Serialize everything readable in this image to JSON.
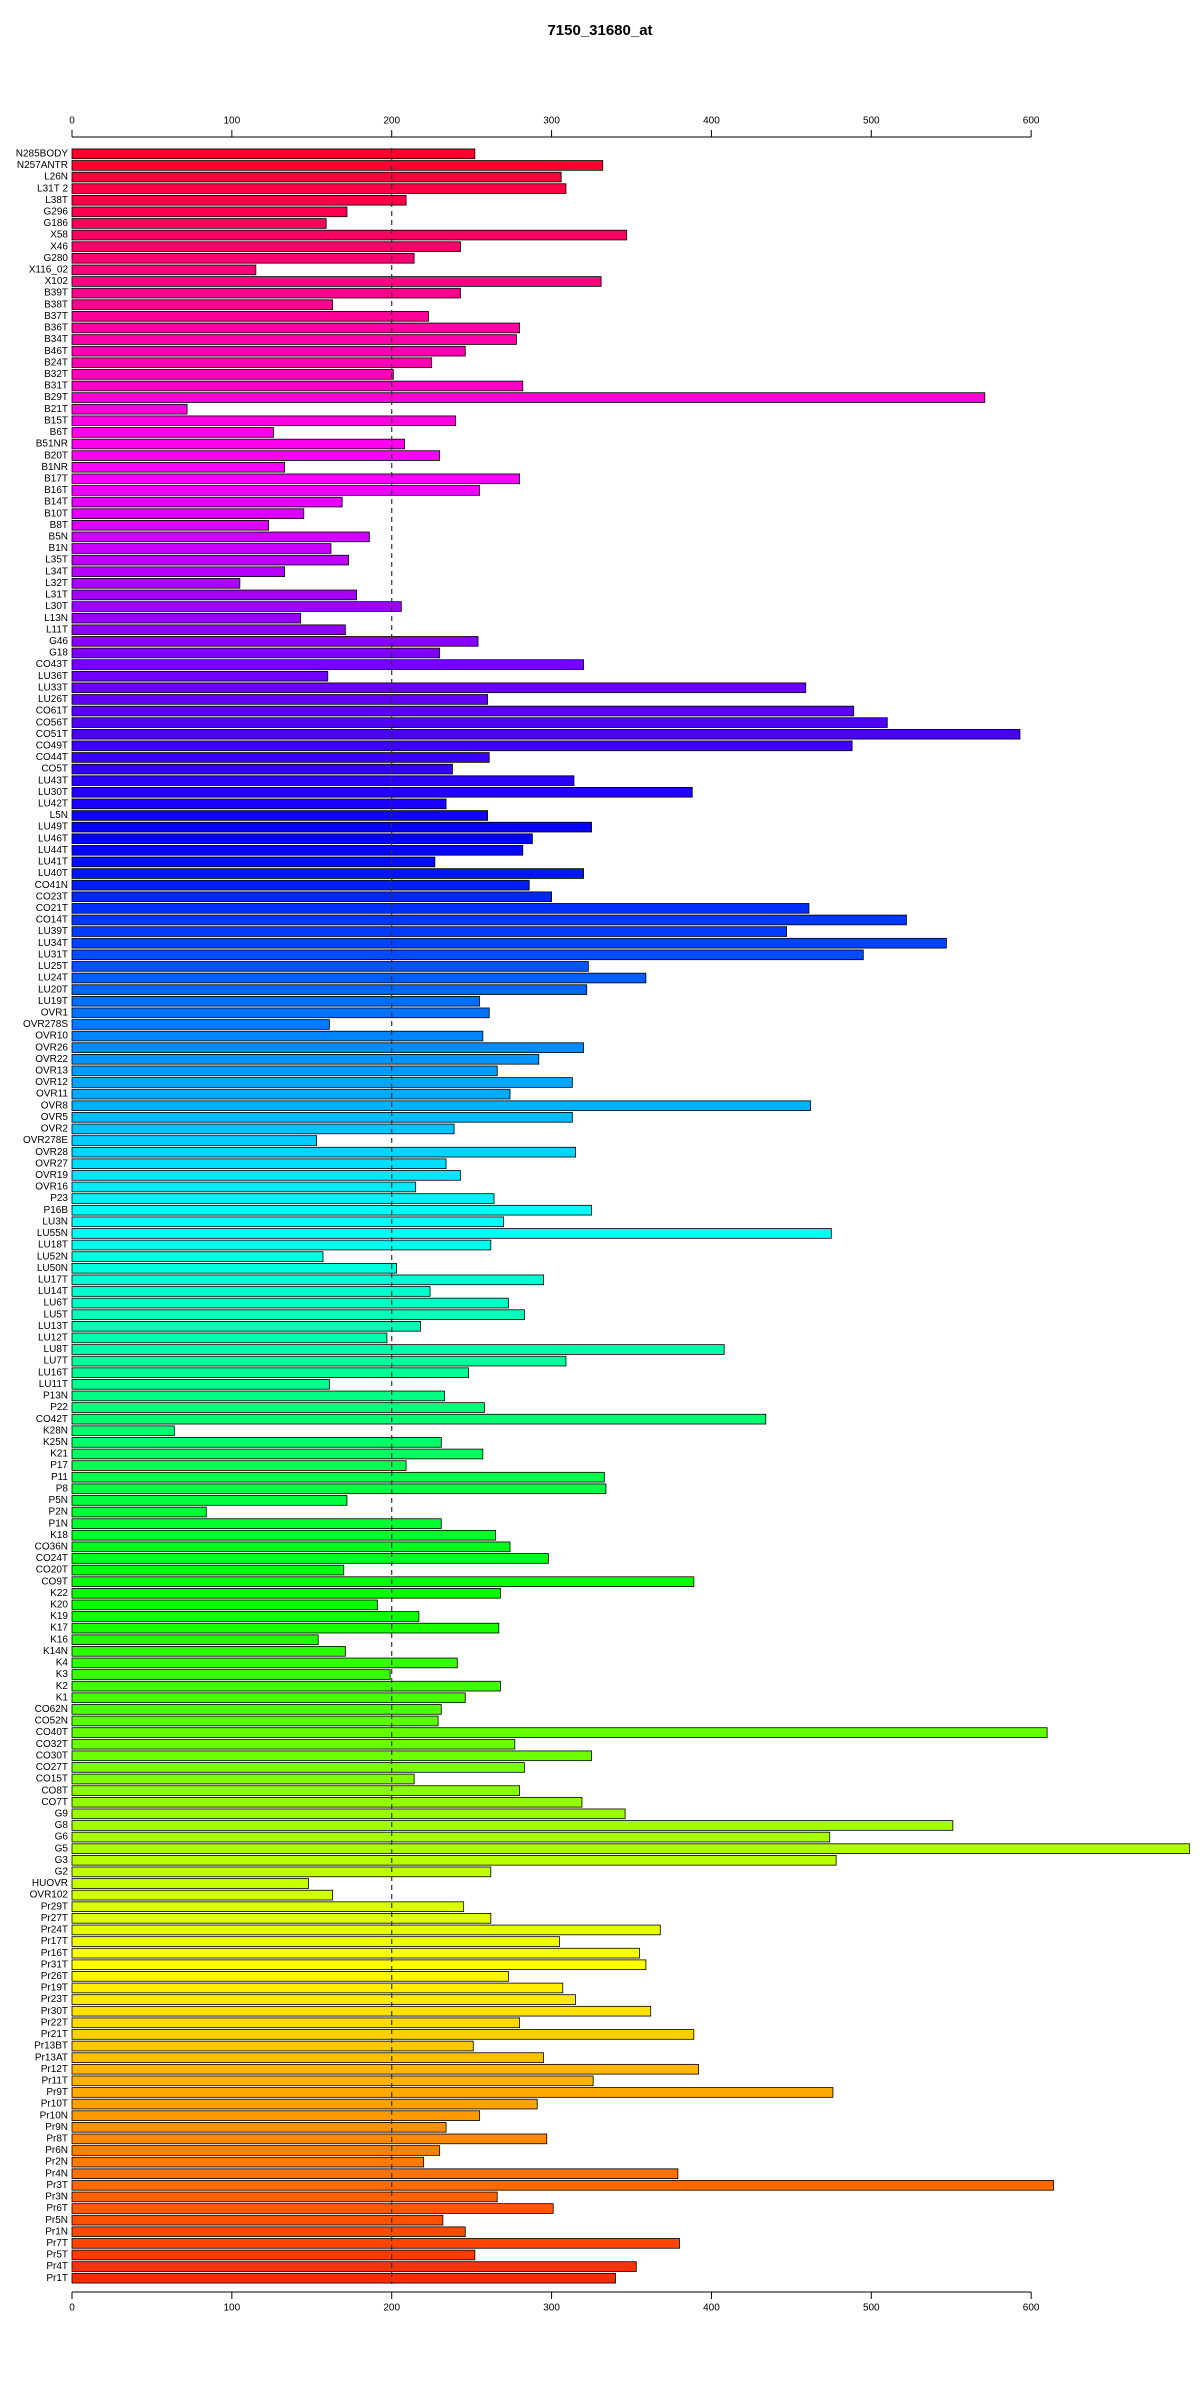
{
  "chart_data": {
    "type": "barh",
    "title": "7150_31680_at",
    "categories": [
      "N285BODY",
      "N257ANTR",
      "L26N",
      "L31T 2",
      "L38T",
      "G296",
      "G186",
      "X58",
      "X46",
      "G280",
      "X116_02",
      "X102",
      "B39T",
      "B38T",
      "B37T",
      "B36T",
      "B34T",
      "B46T",
      "B24T",
      "B32T",
      "B31T",
      "B29T",
      "B21T",
      "B15T",
      "B6T",
      "B51NR",
      "B20T",
      "B1NR",
      "B17T",
      "B16T",
      "B14T",
      "B10T",
      "B8T",
      "B5N",
      "B1N",
      "L35T",
      "L34T",
      "L32T",
      "L31T",
      "L30T",
      "L13N",
      "L11T",
      "G46",
      "G18",
      "CO43T",
      "LU36T",
      "LU33T",
      "LU26T",
      "CO61T",
      "CO56T",
      "CO51T",
      "CO49T",
      "CO44T",
      "CO5T",
      "LU43T",
      "LU30T",
      "LU42T",
      "L5N",
      "LU49T",
      "LU46T",
      "LU44T",
      "LU41T",
      "LU40T",
      "CO41N",
      "CO23T",
      "CO21T",
      "CO14T",
      "LU39T",
      "LU34T",
      "LU31T",
      "LU25T",
      "LU24T",
      "LU20T",
      "LU19T",
      "OVR1",
      "OVR278S",
      "OVR10",
      "OVR26",
      "OVR22",
      "OVR13",
      "OVR12",
      "OVR11",
      "OVR8",
      "OVR5",
      "OVR2",
      "OVR278E",
      "OVR28",
      "OVR27",
      "OVR19",
      "OVR16",
      "P23",
      "P16B",
      "LU3N",
      "LU55N",
      "LU18T",
      "LU52N",
      "LU50N",
      "LU17T",
      "LU14T",
      "LU6T",
      "LU5T",
      "LU13T",
      "LU12T",
      "LU8T",
      "LU7T",
      "LU16T",
      "LU11T",
      "P13N",
      "P22",
      "CO42T",
      "K28N",
      "K25N",
      "K21",
      "P17",
      "P11",
      "P8",
      "P5N",
      "P2N",
      "P1N",
      "K18",
      "CO36N",
      "CO24T",
      "CO20T",
      "CO9T",
      "K22",
      "K20",
      "K19",
      "K17",
      "K16",
      "K14N",
      "K4",
      "K3",
      "K2",
      "K1",
      "CO62N",
      "CO52N",
      "CO40T",
      "CO32T",
      "CO30T",
      "CO27T",
      "CO15T",
      "CO8T",
      "CO7T",
      "G9",
      "G8",
      "G6",
      "G5",
      "G3",
      "G2",
      "HUOVR",
      "OVR102",
      "Pr29T",
      "Pr27T",
      "Pr24T",
      "Pr17T",
      "Pr16T",
      "Pr31T",
      "Pr26T",
      "Pr19T",
      "Pr23T",
      "Pr30T",
      "Pr22T",
      "Pr21T",
      "Pr13BT",
      "Pr13AT",
      "Pr12T",
      "Pr11T",
      "Pr9T",
      "Pr10T",
      "Pr10N",
      "Pr9N",
      "Pr8T",
      "Pr6N",
      "Pr2N",
      "Pr4N",
      "Pr3T",
      "Pr3N",
      "Pr6T",
      "Pr5N",
      "Pr1N",
      "Pr7T",
      "Pr5T",
      "Pr4T",
      "Pr1T"
    ],
    "values": [
      252,
      332,
      306,
      309,
      209,
      172,
      159,
      347,
      243,
      214,
      115,
      331,
      243,
      163,
      223,
      280,
      278,
      246,
      225,
      201,
      282,
      571,
      72,
      240,
      126,
      208,
      230,
      133,
      280,
      255,
      169,
      145,
      123,
      186,
      162,
      173,
      133,
      105,
      178,
      206,
      143,
      171,
      254,
      230,
      320,
      160,
      459,
      260,
      489,
      510,
      593,
      488,
      261,
      238,
      314,
      388,
      234,
      260,
      325,
      288,
      282,
      227,
      320,
      286,
      300,
      461,
      522,
      447,
      547,
      495,
      323,
      359,
      322,
      255,
      261,
      161,
      257,
      320,
      292,
      266,
      313,
      274,
      462,
      313,
      239,
      153,
      315,
      234,
      243,
      215,
      264,
      325,
      270,
      475,
      262,
      157,
      203,
      295,
      224,
      273,
      283,
      218,
      197,
      408,
      309,
      248,
      161,
      233,
      258,
      434,
      64,
      231,
      257,
      209,
      333,
      334,
      172,
      84,
      231,
      265,
      274,
      298,
      170,
      389,
      268,
      191,
      217,
      267,
      154,
      171,
      241,
      199,
      268,
      246,
      231,
      229,
      610,
      277,
      325,
      283,
      214,
      280,
      319,
      346,
      551,
      474,
      699,
      478,
      262,
      148,
      163,
      245,
      262,
      368,
      305,
      355,
      359,
      273,
      307,
      315,
      362,
      280,
      389,
      251,
      295,
      392,
      326,
      476,
      291,
      255,
      234,
      297,
      230,
      220,
      379,
      614,
      266,
      301,
      232,
      246,
      380,
      252,
      353,
      340
    ],
    "colors": [
      "hsl(350,100%,50%)",
      "hsl(348,100%,50%)",
      "hsl(346,100%,50%)",
      "hsl(344,100%,50%)",
      "hsl(343,100%,50%)",
      "hsl(341,100%,50%)",
      "hsl(339,100%,50%)",
      "hsl(337,100%,50%)",
      "hsl(335,100%,50%)",
      "hsl(333,100%,50%)",
      "hsl(331,100%,50%)",
      "hsl(330,100%,50%)",
      "hsl(328,100%,50%)",
      "hsl(326,100%,50%)",
      "hsl(324,100%,50%)",
      "hsl(322,100%,50%)",
      "hsl(320,100%,50%)",
      "hsl(318,100%,50%)",
      "hsl(317,100%,50%)",
      "hsl(315,100%,50%)",
      "hsl(313,100%,50%)",
      "hsl(311,100%,50%)",
      "hsl(309,100%,50%)",
      "hsl(307,100%,50%)",
      "hsl(305,100%,50%)",
      "hsl(304,100%,50%)",
      "hsl(302,100%,50%)",
      "hsl(300,100%,50%)",
      "hsl(298,100%,50%)",
      "hsl(296,100%,50%)",
      "hsl(294,100%,50%)",
      "hsl(292,100%,50%)",
      "hsl(291,100%,50%)",
      "hsl(289,100%,50%)",
      "hsl(287,100%,50%)",
      "hsl(285,100%,50%)",
      "hsl(283,100%,50%)",
      "hsl(281,100%,50%)",
      "hsl(279,100%,50%)",
      "hsl(278,100%,50%)",
      "hsl(276,100%,50%)",
      "hsl(274,100%,50%)",
      "hsl(272,100%,50%)",
      "hsl(270,100%,50%)",
      "hsl(268,100%,50%)",
      "hsl(266,100%,50%)",
      "hsl(265,100%,50%)",
      "hsl(263,100%,50%)",
      "hsl(261,100%,50%)",
      "hsl(259,100%,50%)",
      "hsl(257,100%,50%)",
      "hsl(255,100%,50%)",
      "hsl(253,100%,50%)",
      "hsl(252,100%,50%)",
      "hsl(250,100%,50%)",
      "hsl(248,100%,50%)",
      "hsl(246,100%,50%)",
      "hsl(244,100%,50%)",
      "hsl(242,100%,50%)",
      "hsl(240,100%,50%)",
      "hsl(239,100%,50%)",
      "hsl(237,100%,50%)",
      "hsl(235,100%,50%)",
      "hsl(233,100%,50%)",
      "hsl(231,100%,50%)",
      "hsl(229,100%,50%)",
      "hsl(227,100%,50%)",
      "hsl(226,100%,50%)",
      "hsl(224,100%,50%)",
      "hsl(222,100%,50%)",
      "hsl(220,100%,50%)",
      "hsl(218,100%,50%)",
      "hsl(216,100%,50%)",
      "hsl(214,100%,50%)",
      "hsl(213,100%,50%)",
      "hsl(211,100%,50%)",
      "hsl(209,100%,50%)",
      "hsl(207,100%,50%)",
      "hsl(205,100%,50%)",
      "hsl(203,100%,50%)",
      "hsl(201,100%,50%)",
      "hsl(200,100%,50%)",
      "hsl(198,100%,50%)",
      "hsl(196,100%,50%)",
      "hsl(194,100%,50%)",
      "hsl(192,100%,50%)",
      "hsl(190,100%,50%)",
      "hsl(188,100%,50%)",
      "hsl(186,100%,50%)",
      "hsl(185,100%,50%)",
      "hsl(183,100%,50%)",
      "hsl(181,100%,50%)",
      "hsl(179,100%,50%)",
      "hsl(177,100%,50%)",
      "hsl(175,100%,50%)",
      "hsl(173,100%,50%)",
      "hsl(172,100%,50%)",
      "hsl(170,100%,50%)",
      "hsl(168,100%,50%)",
      "hsl(166,100%,50%)",
      "hsl(164,100%,50%)",
      "hsl(162,100%,50%)",
      "hsl(160,100%,50%)",
      "hsl(159,100%,50%)",
      "hsl(157,100%,50%)",
      "hsl(155,100%,50%)",
      "hsl(153,100%,50%)",
      "hsl(151,100%,50%)",
      "hsl(149,100%,50%)",
      "hsl(147,100%,50%)",
      "hsl(146,100%,50%)",
      "hsl(144,100%,50%)",
      "hsl(142,100%,50%)",
      "hsl(140,100%,50%)",
      "hsl(138,100%,50%)",
      "hsl(136,100%,50%)",
      "hsl(134,100%,50%)",
      "hsl(133,100%,50%)",
      "hsl(131,100%,50%)",
      "hsl(129,100%,50%)",
      "hsl(127,100%,50%)",
      "hsl(125,100%,50%)",
      "hsl(123,100%,50%)",
      "hsl(121,100%,50%)",
      "hsl(120,100%,50%)",
      "hsl(118,100%,50%)",
      "hsl(116,100%,50%)",
      "hsl(114,100%,50%)",
      "hsl(112,100%,50%)",
      "hsl(110,100%,50%)",
      "hsl(108,100%,50%)",
      "hsl(107,100%,50%)",
      "hsl(105,100%,50%)",
      "hsl(103,100%,50%)",
      "hsl(101,100%,50%)",
      "hsl(99,100%,50%)",
      "hsl(97,100%,50%)",
      "hsl(95,100%,50%)",
      "hsl(94,100%,50%)",
      "hsl(92,100%,50%)",
      "hsl(90,100%,50%)",
      "hsl(88,100%,50%)",
      "hsl(86,100%,50%)",
      "hsl(84,100%,50%)",
      "hsl(82,100%,50%)",
      "hsl(81,100%,50%)",
      "hsl(79,100%,50%)",
      "hsl(77,100%,50%)",
      "hsl(75,100%,50%)",
      "hsl(73,100%,50%)",
      "hsl(71,100%,50%)",
      "hsl(69,100%,50%)",
      "hsl(68,100%,50%)",
      "hsl(66,100%,50%)",
      "hsl(64,100%,50%)",
      "hsl(62,100%,50%)",
      "hsl(60,100%,50%)",
      "hsl(58,100%,50%)",
      "hsl(56,100%,50%)",
      "hsl(55,100%,50%)",
      "hsl(53,100%,50%)",
      "hsl(51,100%,50%)",
      "hsl(49,100%,50%)",
      "hsl(47,100%,50%)",
      "hsl(45,100%,50%)",
      "hsl(43,100%,50%)",
      "hsl(42,100%,50%)",
      "hsl(40,100%,50%)",
      "hsl(38,100%,50%)",
      "hsl(36,100%,50%)",
      "hsl(34,100%,50%)",
      "hsl(32,100%,50%)",
      "hsl(30,100%,50%)",
      "hsl(29,100%,50%)",
      "hsl(27,100%,50%)",
      "hsl(25,100%,50%)",
      "hsl(23,100%,50%)",
      "hsl(21,100%,50%)",
      "hsl(19,100%,50%)",
      "hsl(17,100%,50%)",
      "hsl(16,100%,50%)",
      "hsl(14,100%,50%)",
      "hsl(12,100%,50%)",
      "hsl(10,100%,50%)"
    ],
    "xlim": [
      0,
      700
    ],
    "xticks": [
      0,
      100,
      200,
      300,
      400,
      500,
      600
    ],
    "reference_line": 200
  }
}
